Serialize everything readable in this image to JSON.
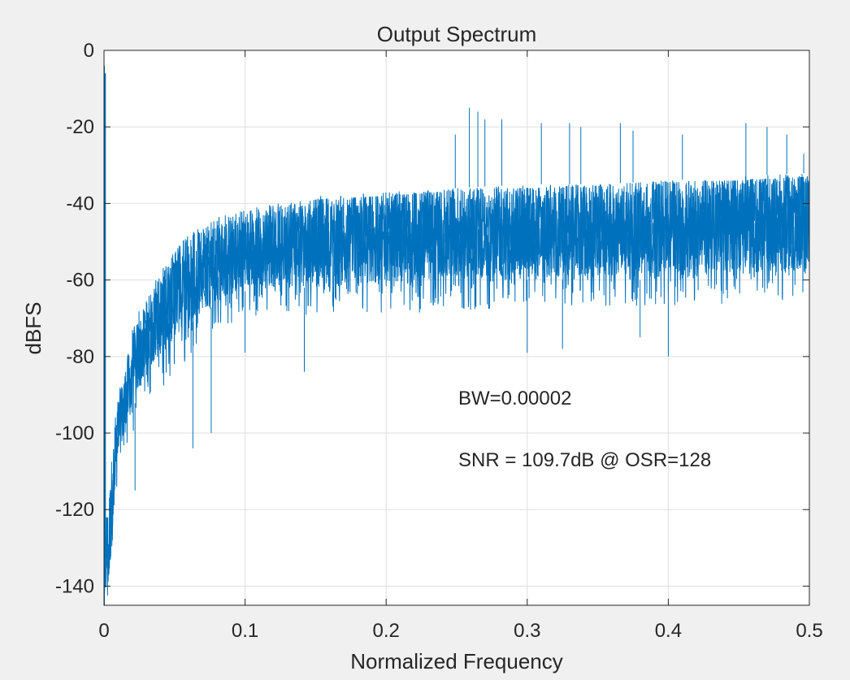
{
  "chart_data": {
    "type": "line",
    "title": "Output Spectrum",
    "xlabel": "Normalized Frequency",
    "ylabel": "dBFS",
    "xlim": [
      0,
      0.5
    ],
    "ylim": [
      -145,
      0
    ],
    "grid": true,
    "x_ticks": [
      "0",
      "0.1",
      "0.2",
      "0.3",
      "0.4",
      "0.5"
    ],
    "y_ticks": [
      "0",
      "-20",
      "-40",
      "-60",
      "-80",
      "-100",
      "-120",
      "-140"
    ],
    "annotations": [
      {
        "text": "BW=0.00002",
        "x": 0.25,
        "y": -91
      },
      {
        "text": "SNR = 109.7dB @ OSR=128",
        "x": 0.25,
        "y": -107
      }
    ],
    "line_color": "#0072bd",
    "series": [
      {
        "signal_peak": {
          "x": 0.0009,
          "y": -6
        },
        "envelope": {
          "x": [
            0,
            0.003,
            0.006,
            0.01,
            0.015,
            0.02,
            0.03,
            0.04,
            0.05,
            0.06,
            0.08,
            0.1,
            0.12,
            0.15,
            0.2,
            0.25,
            0.3,
            0.35,
            0.4,
            0.45,
            0.5
          ],
          "upper": [
            -128,
            -118,
            -103,
            -90,
            -83,
            -73,
            -66,
            -58,
            -52,
            -48,
            -44,
            -42,
            -41,
            -38,
            -37,
            -36,
            -35,
            -35,
            -34,
            -33,
            -32
          ],
          "lower": [
            -145,
            -143,
            -128,
            -108,
            -100,
            -94,
            -85,
            -80,
            -75,
            -72,
            -66,
            -63,
            -62,
            -62,
            -62,
            -61,
            -60,
            -60,
            -60,
            -59,
            -59
          ]
        },
        "outer_band": {
          "x": [
            0,
            0.01,
            0.02,
            0.04,
            0.06,
            0.08,
            0.1,
            0.15,
            0.2,
            0.25,
            0.3,
            0.35,
            0.4,
            0.45,
            0.5
          ],
          "upper": [
            -128,
            -86,
            -70,
            -56,
            -47,
            -42,
            -40,
            -38,
            -37,
            -35,
            -35,
            -34,
            -33,
            -33,
            -32
          ],
          "lower": [
            -145,
            -112,
            -100,
            -90,
            -80,
            -74,
            -70,
            -69,
            -69,
            -68,
            -67,
            -67,
            -67,
            -66,
            -66
          ]
        },
        "spurs": [
          {
            "x": 0.259,
            "y": -15
          },
          {
            "x": 0.265,
            "y": -16
          },
          {
            "x": 0.249,
            "y": -22
          },
          {
            "x": 0.27,
            "y": -18
          },
          {
            "x": 0.282,
            "y": -18
          },
          {
            "x": 0.31,
            "y": -19
          },
          {
            "x": 0.33,
            "y": -19
          },
          {
            "x": 0.338,
            "y": -20
          },
          {
            "x": 0.366,
            "y": -19
          },
          {
            "x": 0.375,
            "y": -21
          },
          {
            "x": 0.41,
            "y": -22
          },
          {
            "x": 0.455,
            "y": -19
          },
          {
            "x": 0.47,
            "y": -20
          },
          {
            "x": 0.484,
            "y": -22
          },
          {
            "x": 0.496,
            "y": -27
          }
        ],
        "dips": [
          {
            "x": 0.063,
            "y": -104
          },
          {
            "x": 0.076,
            "y": -100
          },
          {
            "x": 0.142,
            "y": -84
          },
          {
            "x": 0.1,
            "y": -79
          },
          {
            "x": 0.022,
            "y": -115
          },
          {
            "x": 0.4,
            "y": -80
          },
          {
            "x": 0.38,
            "y": -75
          },
          {
            "x": 0.3,
            "y": -79
          },
          {
            "x": 0.325,
            "y": -78
          }
        ]
      }
    ]
  }
}
